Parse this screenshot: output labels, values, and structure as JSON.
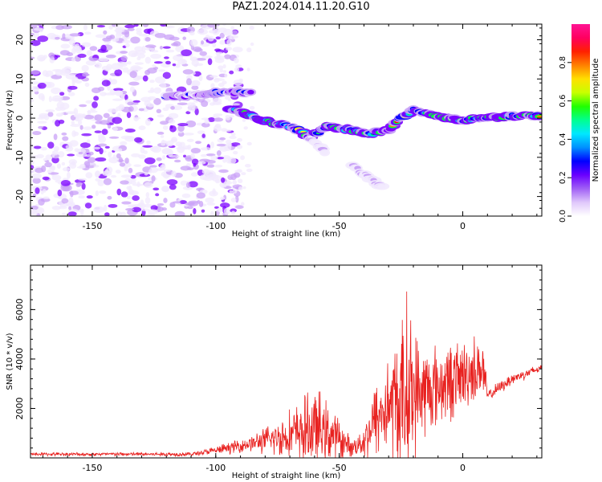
{
  "title": "PAZ1.2024.014.11.20.G10",
  "chart_data": [
    {
      "type": "heatmap",
      "xlabel": "Height of straight line (km)",
      "ylabel": "Frequency (Hz)",
      "xlim": [
        -175,
        32
      ],
      "ylim": [
        -25,
        24
      ],
      "xticks": [
        -150,
        -100,
        -50,
        0
      ],
      "yticks": [
        -20,
        -10,
        0,
        10,
        20
      ],
      "colorbar": {
        "label": "Normalized spectral amplitude",
        "range": [
          0,
          1
        ],
        "ticks": [
          0.0,
          0.2,
          0.4,
          0.6,
          0.8
        ],
        "colormap": "gist_ncar-like",
        "colors": [
          "#f2eafe",
          "#c9a2f7",
          "#7b00ff",
          "#0000ff",
          "#00c8ff",
          "#00ff40",
          "#ffff00",
          "#ff8000",
          "#ff0000",
          "#ff0090"
        ]
      },
      "tracks": [
        {
          "name": "",
          "points": [
            [
              -120,
              5.5
            ],
            [
              -110,
              5.8
            ],
            [
              -100,
              6.5
            ],
            [
              -90,
              6.5
            ],
            [
              -85,
              6.8
            ]
          ],
          "amplitude": 0.5
        },
        {
          "name": "",
          "points": [
            [
              -95,
              2.5
            ],
            [
              -85,
              0.5
            ],
            [
              -75,
              -1.5
            ],
            [
              -68,
              -2.5
            ],
            [
              -62,
              -5
            ],
            [
              -55,
              -2
            ],
            [
              -45,
              -3
            ],
            [
              -38,
              -4
            ],
            [
              -30,
              -3
            ],
            [
              -25,
              0
            ],
            [
              -20,
              2
            ],
            [
              -15,
              1
            ],
            [
              -5,
              0
            ],
            [
              0,
              -0.5
            ],
            [
              10,
              0
            ],
            [
              20,
              0.5
            ],
            [
              32,
              0.8
            ]
          ],
          "amplitude": 0.85
        },
        {
          "name": "",
          "points": [
            [
              -62,
              -5
            ],
            [
              -55,
              -9
            ]
          ],
          "amplitude": 0.25
        },
        {
          "name": "",
          "points": [
            [
              -45,
              -12
            ],
            [
              -32,
              -18
            ]
          ],
          "amplitude": 0.2
        }
      ],
      "noise_region": {
        "x": [
          -175,
          -100
        ],
        "amplitude": 0.15
      }
    },
    {
      "type": "line",
      "xlabel": "Height of straight line (km)",
      "ylabel": "SNR (10 * v/v)",
      "xlim": [
        -175,
        32
      ],
      "ylim": [
        0,
        7800
      ],
      "xticks": [
        -150,
        -100,
        -50,
        0
      ],
      "yticks": [
        2000,
        4000,
        6000
      ],
      "color": "#e8211f",
      "envelope": [
        {
          "x": -175,
          "base": 150,
          "amp": 80
        },
        {
          "x": -110,
          "base": 150,
          "amp": 100
        },
        {
          "x": -100,
          "base": 300,
          "amp": 200
        },
        {
          "x": -85,
          "base": 600,
          "amp": 400
        },
        {
          "x": -75,
          "base": 800,
          "amp": 900
        },
        {
          "x": -68,
          "base": 1000,
          "amp": 1300
        },
        {
          "x": -60,
          "base": 1200,
          "amp": 2000
        },
        {
          "x": -52,
          "base": 900,
          "amp": 1200
        },
        {
          "x": -45,
          "base": 400,
          "amp": 400
        },
        {
          "x": -40,
          "base": 700,
          "amp": 800
        },
        {
          "x": -35,
          "base": 1600,
          "amp": 2000
        },
        {
          "x": -30,
          "base": 2100,
          "amp": 2500
        },
        {
          "x": -25,
          "base": 2300,
          "amp": 3800
        },
        {
          "x": -22,
          "base": 2600,
          "amp": 5200
        },
        {
          "x": -18,
          "base": 2600,
          "amp": 2600
        },
        {
          "x": -10,
          "base": 2900,
          "amp": 2000
        },
        {
          "x": 0,
          "base": 3300,
          "amp": 1800
        },
        {
          "x": 8,
          "base": 3700,
          "amp": 1600
        },
        {
          "x": 10,
          "base": 2500,
          "amp": 300
        },
        {
          "x": 20,
          "base": 3200,
          "amp": 300
        },
        {
          "x": 32,
          "base": 3650,
          "amp": 200
        }
      ]
    }
  ]
}
